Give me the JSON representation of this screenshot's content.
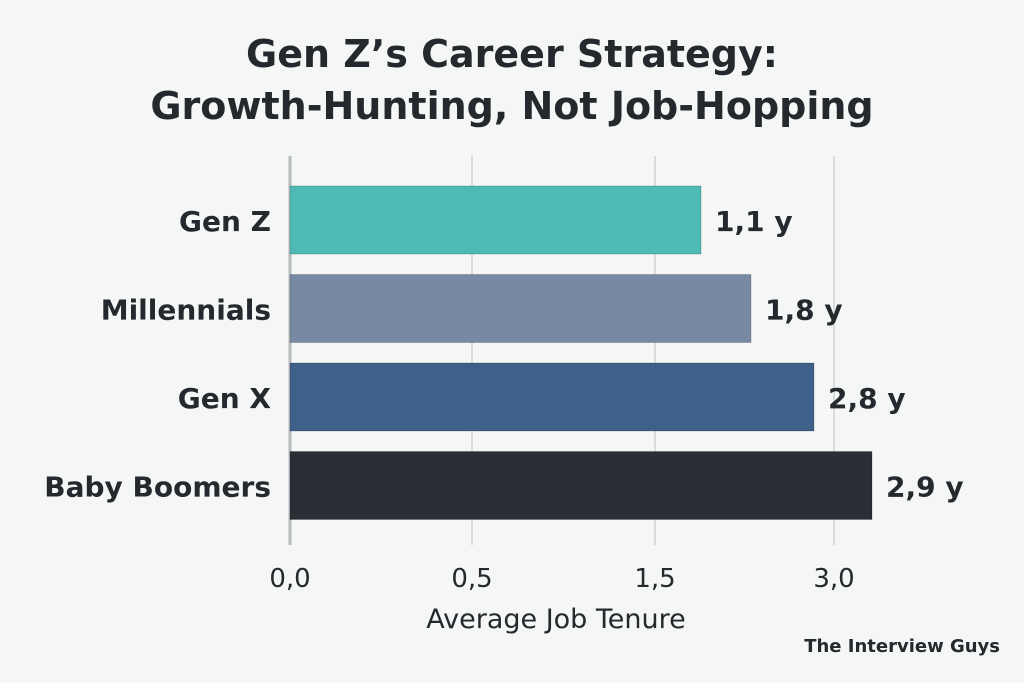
{
  "chart_data": {
    "type": "bar",
    "orientation": "horizontal",
    "title_lines": [
      "Gen Z’s Career Strategy:",
      "Growth-Hunting, Not Job-Hopping"
    ],
    "xlabel": "Average Job Tenure",
    "ylabel": "",
    "categories": [
      "Gen Z",
      "Millennials",
      "Gen X",
      "Baby Boomers"
    ],
    "values": [
      1.1,
      1.8,
      2.8,
      2.9
    ],
    "value_labels": [
      "1,1 y",
      "1,8 y",
      "2,8 y",
      "2,9 y"
    ],
    "x_ticks": [
      {
        "label": "0,0",
        "value": 0.0
      },
      {
        "label": "0,5",
        "value": 0.5
      },
      {
        "label": "1,5",
        "value": 1.5
      },
      {
        "label": "3,0",
        "value": 3.0
      }
    ],
    "colors": [
      "#4dbab5",
      "#7889a3",
      "#3f6089",
      "#2a2e35"
    ],
    "grid": true,
    "legend": "none"
  },
  "footer": {
    "source": "The Interview Guys"
  }
}
